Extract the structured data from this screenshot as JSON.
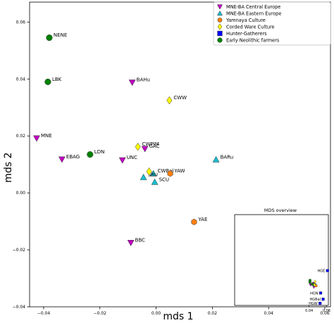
{
  "chart_data": [
    {
      "type": "scatter",
      "xlabel": "mds 1",
      "ylabel": "mds 2",
      "xlim": [
        -0.045,
        0.062
      ],
      "ylim": [
        -0.04,
        0.067
      ],
      "xticks": [
        -0.04,
        -0.02,
        0.0,
        0.02,
        0.04,
        0.06
      ],
      "yticks": [
        -0.04,
        -0.02,
        0.0,
        0.02,
        0.04,
        0.06
      ],
      "xtick_labels": [
        "−0.04",
        "−0.02",
        "0.00",
        "0.02",
        "0.04",
        "0.06"
      ],
      "ytick_labels": [
        "−0.04",
        "−0.02",
        "0.00",
        "0.02",
        "0.04",
        "0.06"
      ],
      "grid": false,
      "legend_position": "top-right",
      "series": [
        {
          "name": "MNE-BA Central Europe",
          "marker": "triangle-down",
          "color": "#bf00bf",
          "points": [
            {
              "label": "MNE",
              "x": -0.0425,
              "y": 0.0192
            },
            {
              "label": "EBAG",
              "x": -0.0335,
              "y": 0.0118
            },
            {
              "label": "BAHu",
              "x": -0.0085,
              "y": 0.0388
            },
            {
              "label": "UNC",
              "x": -0.012,
              "y": 0.0115
            },
            {
              "label": "GAC",
              "x": -0.004,
              "y": 0.0155
            },
            {
              "label": "BBC",
              "x": -0.009,
              "y": -0.0175
            }
          ]
        },
        {
          "name": "MNE-BA Eastern Europe",
          "marker": "triangle-up",
          "color": "#17becf",
          "points": [
            {
              "label": "BARu",
              "x": 0.0213,
              "y": 0.0117
            },
            {
              "label": "CWBal",
              "x": -0.001,
              "y": 0.0068
            },
            {
              "label": "SRU",
              "x": -0.0045,
              "y": 0.0055
            },
            {
              "label": "SCU",
              "x": -0.0005,
              "y": 0.0038
            }
          ]
        },
        {
          "name": "Yamnaya Culture",
          "marker": "hexagon",
          "color": "#ff7f0e",
          "points": [
            {
              "label": "YAW",
              "x": 0.005,
              "y": 0.0068
            },
            {
              "label": "YAE",
              "x": 0.0135,
              "y": -0.0102
            }
          ]
        },
        {
          "name": "Corded Ware Culture",
          "marker": "diamond",
          "color": "#ffff00",
          "points": [
            {
              "label": "CWW",
              "x": 0.0047,
              "y": 0.0325
            },
            {
              "label": "CWPIM",
              "x": -0.0065,
              "y": 0.0162
            },
            {
              "label": "",
              "x": -0.0025,
              "y": 0.0075
            }
          ]
        },
        {
          "name": "Hunter-Gatherers",
          "marker": "square",
          "color": "#0000ff",
          "points": []
        },
        {
          "name": "Early Neolithic farmers",
          "marker": "circle",
          "color": "#008000",
          "points": [
            {
              "label": "NENE",
              "x": -0.038,
              "y": 0.0545
            },
            {
              "label": "LBK",
              "x": -0.0385,
              "y": 0.039
            },
            {
              "label": "LDN",
              "x": -0.0235,
              "y": 0.0135
            }
          ]
        }
      ]
    },
    {
      "type": "scatter",
      "title": "MDS overview",
      "xlim": [
        -0.045,
        0.062
      ],
      "ylim": [
        -0.04,
        0.067
      ],
      "xticks": [
        0.04,
        0.06
      ],
      "xtick_labels": [
        "0.04",
        "0.06"
      ],
      "series": [
        {
          "name": "MNE-BA Central Europe",
          "marker": "triangle-down",
          "color": "#bf00bf",
          "points": [
            {
              "label": "",
              "x": 0.0415,
              "y": -0.0155
            },
            {
              "label": "",
              "x": 0.042,
              "y": -0.0155
            },
            {
              "label": "",
              "x": 0.045,
              "y": -0.014
            },
            {
              "label": "",
              "x": 0.0455,
              "y": -0.0155
            },
            {
              "label": "",
              "x": 0.0462,
              "y": -0.016
            },
            {
              "label": "",
              "x": 0.0455,
              "y": -0.0185
            }
          ]
        },
        {
          "name": "MNE-BA Eastern Europe",
          "marker": "triangle-up",
          "color": "#17becf",
          "points": [
            {
              "label": "",
              "x": 0.0478,
              "y": -0.0155
            },
            {
              "label": "",
              "x": 0.0462,
              "y": -0.0157
            },
            {
              "label": "",
              "x": 0.0458,
              "y": -0.016
            },
            {
              "label": "",
              "x": 0.0462,
              "y": -0.0162
            }
          ]
        },
        {
          "name": "Yamnaya Culture",
          "marker": "hexagon",
          "color": "#ff7f0e",
          "points": [
            {
              "label": "",
              "x": 0.0468,
              "y": -0.016
            },
            {
              "label": "",
              "x": 0.048,
              "y": -0.017
            }
          ]
        },
        {
          "name": "Corded Ware Culture",
          "marker": "diamond",
          "color": "#ffff00",
          "points": [
            {
              "label": "",
              "x": 0.0468,
              "y": -0.012
            },
            {
              "label": "",
              "x": 0.0458,
              "y": -0.0155
            },
            {
              "label": "",
              "x": 0.0463,
              "y": -0.0158
            }
          ]
        },
        {
          "name": "Hunter-Gatherers",
          "marker": "square",
          "color": "#0000ff",
          "points": [
            {
              "label": "HGE",
              "x": 0.061,
              "y": 0.001
            },
            {
              "label": "HGN",
              "x": 0.0532,
              "y": -0.0254
            },
            {
              "label": "HGBal",
              "x": 0.056,
              "y": -0.0327
            },
            {
              "label": "HGW",
              "x": 0.0525,
              "y": -0.0375
            }
          ]
        },
        {
          "name": "Early Neolithic farmers",
          "marker": "circle",
          "color": "#008000",
          "points": [
            {
              "label": "",
              "x": 0.041,
              "y": -0.0105
            },
            {
              "label": "",
              "x": 0.041,
              "y": -0.0125
            },
            {
              "label": "",
              "x": 0.0437,
              "y": -0.015
            }
          ]
        }
      ]
    }
  ]
}
